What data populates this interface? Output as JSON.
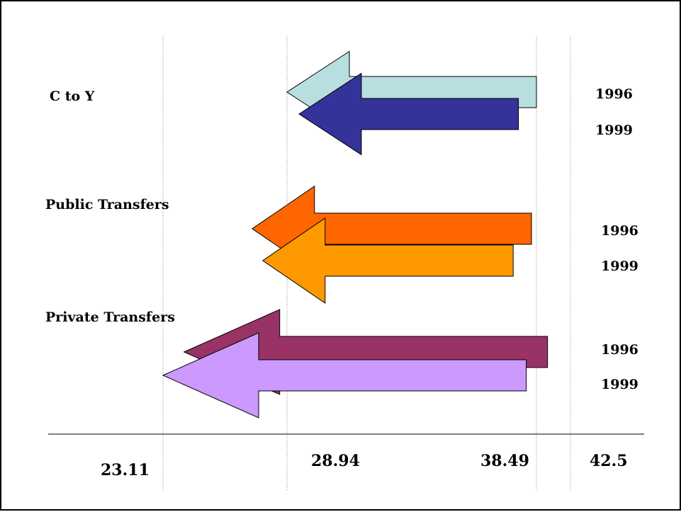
{
  "chart_data": {
    "type": "range-arrow",
    "title": "",
    "xlabel": "",
    "ylabel": "",
    "ticks": [
      {
        "value": 23.11,
        "label": "23.11"
      },
      {
        "value": 28.94,
        "label": "28.94"
      },
      {
        "value": 38.49,
        "label": "38.49"
      },
      {
        "value": 42.5,
        "label": "42.5"
      }
    ],
    "grid": "vertical dotted lines at tick values",
    "groups": [
      {
        "label": "C to Y",
        "arrows": [
          {
            "year": "1996",
            "from": 38.49,
            "to": 28.94,
            "color": "#B8DEE0"
          },
          {
            "year": "1999",
            "from": 37.8,
            "to": 29.4,
            "color": "#333399"
          }
        ]
      },
      {
        "label": "Public Transfers",
        "arrows": [
          {
            "year": "1996",
            "from": 38.3,
            "to": 27.3,
            "color": "#FF6600"
          },
          {
            "year": "1999",
            "from": 37.6,
            "to": 27.8,
            "color": "#FF9900"
          }
        ]
      },
      {
        "label": "Private Transfers",
        "arrows": [
          {
            "year": "1996",
            "from": 39.8,
            "to": 24.1,
            "color": "#993366"
          },
          {
            "year": "1999",
            "from": 38.1,
            "to": 23.11,
            "color": "#CC99FF"
          }
        ]
      }
    ]
  }
}
